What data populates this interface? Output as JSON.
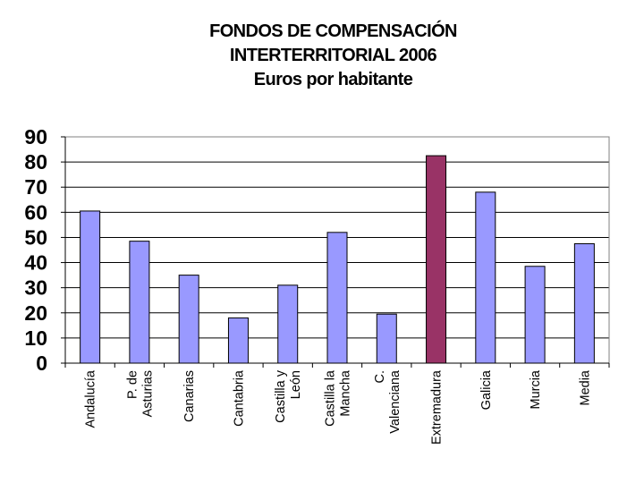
{
  "chart_data": {
    "type": "bar",
    "title_lines": [
      "FONDOS DE COMPENSACIÓN",
      "INTERTERRITORIAL 2006",
      "Euros por habitante"
    ],
    "categories": [
      [
        "Andalucía"
      ],
      [
        "P. de",
        "Asturias"
      ],
      [
        "Canarias"
      ],
      [
        "Cantabria"
      ],
      [
        "Castilla y",
        "León"
      ],
      [
        "Castilla la",
        "Mancha"
      ],
      [
        "C.",
        "Valenciana"
      ],
      [
        "Extremadura"
      ],
      [
        "Galicia"
      ],
      [
        "Murcia"
      ],
      [
        "Media"
      ]
    ],
    "values": [
      60.5,
      48.5,
      35,
      18,
      31,
      52,
      19.5,
      82.5,
      68,
      38.5,
      47.5
    ],
    "highlight_index": 7,
    "ylim": [
      0,
      90
    ],
    "yticks": [
      0,
      10,
      20,
      30,
      40,
      50,
      60,
      70,
      80,
      90
    ],
    "grid": true,
    "colors": {
      "bar": "#9999ff",
      "highlight": "#993366",
      "grid": "#000000"
    }
  }
}
